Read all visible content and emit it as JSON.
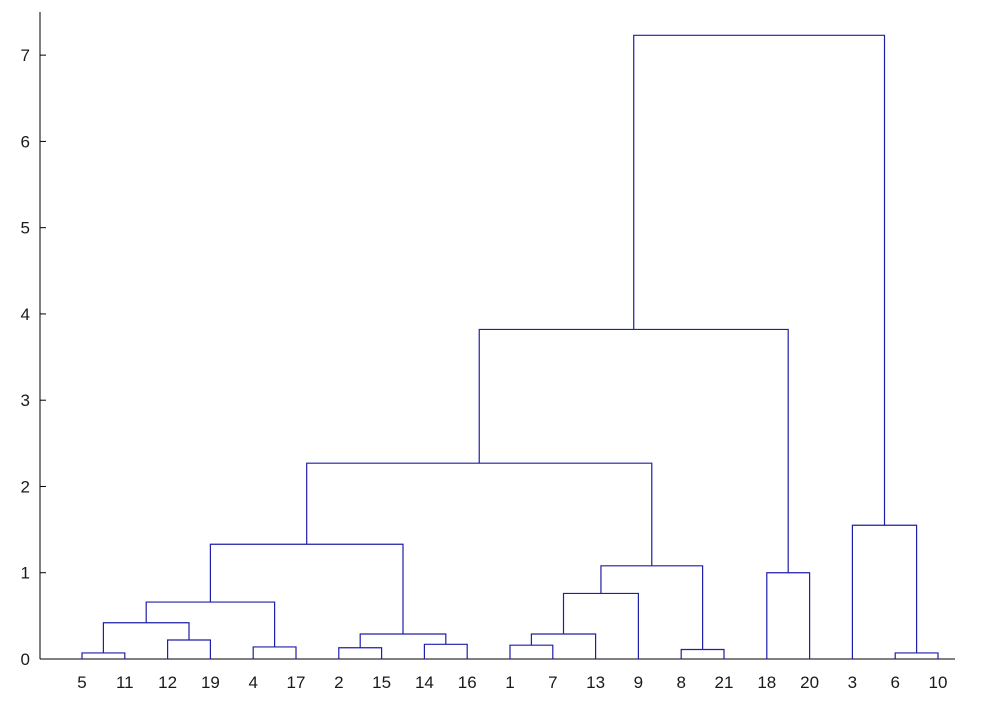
{
  "chart_data": {
    "type": "dendrogram",
    "leaf_order": [
      "5",
      "11",
      "12",
      "19",
      "4",
      "17",
      "2",
      "15",
      "14",
      "16",
      "1",
      "7",
      "13",
      "9",
      "8",
      "21",
      "18",
      "20",
      "3",
      "6",
      "10"
    ],
    "ylim": [
      0,
      7.5
    ],
    "yticks": [
      0,
      1,
      2,
      3,
      4,
      5,
      6,
      7
    ],
    "link_color": "#1f1fa8",
    "merges": [
      {
        "left": "5",
        "right": "11",
        "height": 0.07
      },
      {
        "left": "12",
        "right": "19",
        "height": 0.22
      },
      {
        "left": "4",
        "right": "17",
        "height": 0.14
      },
      {
        "left": "2",
        "right": "15",
        "height": 0.13
      },
      {
        "left": "14",
        "right": "16",
        "height": 0.17
      },
      {
        "left": "1",
        "right": "7",
        "height": 0.16
      },
      {
        "left": "8",
        "right": "21",
        "height": 0.11
      },
      {
        "left": "6",
        "right": "10",
        "height": 0.07
      },
      {
        "left": "5,11",
        "right": "12,19",
        "height": 0.42
      },
      {
        "left": "5,11,12,19",
        "right": "4,17",
        "height": 0.66
      },
      {
        "left": "2,15",
        "right": "14,16",
        "height": 0.29
      },
      {
        "left": "5,11,12,19,4,17",
        "right": "2,15,14,16",
        "height": 1.33
      },
      {
        "left": "1,7",
        "right": "13",
        "height": 0.29
      },
      {
        "left": "1,7,13",
        "right": "9",
        "height": 0.76
      },
      {
        "left": "1,7,13,9",
        "right": "8,21",
        "height": 1.08
      },
      {
        "left": "5,11,12,19,4,17,2,15,14,16",
        "right": "1,7,13,9,8,21",
        "height": 2.27
      },
      {
        "left": "18",
        "right": "20",
        "height": 1.0
      },
      {
        "left": "5,11,12,19,4,17,2,15,14,16,1,7,13,9,8,21",
        "right": "18,20",
        "height": 3.82
      },
      {
        "left": "3",
        "right": "6,10",
        "height": 1.55
      },
      {
        "left": "5,11,12,19,4,17,2,15,14,16,1,7,13,9,8,21,18,20",
        "right": "3,6,10",
        "height": 7.23
      }
    ]
  }
}
